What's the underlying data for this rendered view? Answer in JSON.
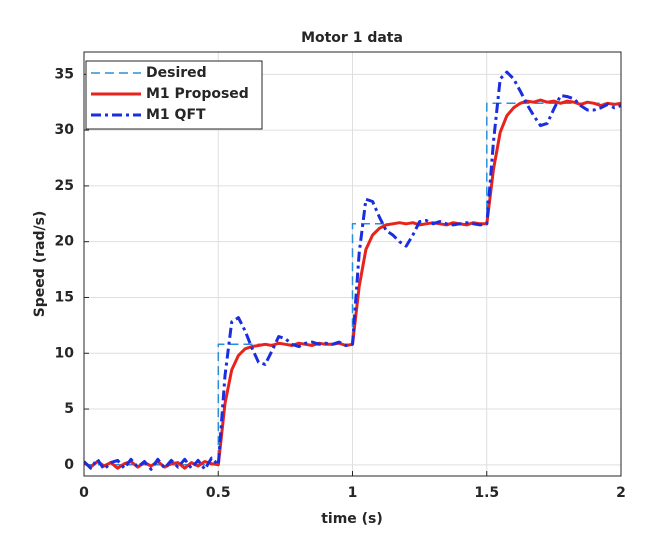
{
  "chart_data": {
    "type": "line",
    "title": "Motor 1 data",
    "xlabel": "time (s)",
    "ylabel": "Speed (rad/s)",
    "xlim": [
      0,
      2
    ],
    "ylim": [
      -1,
      37
    ],
    "xticks": [
      0,
      0.5,
      1,
      1.5,
      2
    ],
    "yticks": [
      0,
      5,
      10,
      15,
      20,
      25,
      30,
      35
    ],
    "grid": true,
    "legend": "northwest",
    "x": [
      0,
      0.025,
      0.05,
      0.075,
      0.1,
      0.125,
      0.15,
      0.175,
      0.2,
      0.225,
      0.25,
      0.275,
      0.3,
      0.325,
      0.35,
      0.375,
      0.4,
      0.425,
      0.45,
      0.475,
      0.5,
      0.525,
      0.55,
      0.575,
      0.6,
      0.625,
      0.65,
      0.675,
      0.7,
      0.725,
      0.75,
      0.775,
      0.8,
      0.825,
      0.85,
      0.875,
      0.9,
      0.925,
      0.95,
      0.975,
      1,
      1.025,
      1.05,
      1.075,
      1.1,
      1.125,
      1.15,
      1.175,
      1.2,
      1.225,
      1.25,
      1.275,
      1.3,
      1.325,
      1.35,
      1.375,
      1.4,
      1.425,
      1.45,
      1.475,
      1.5,
      1.525,
      1.55,
      1.575,
      1.6,
      1.625,
      1.65,
      1.675,
      1.7,
      1.725,
      1.75,
      1.775,
      1.8,
      1.825,
      1.85,
      1.875,
      1.9,
      1.925,
      1.95,
      1.975,
      2
    ],
    "series": [
      {
        "name": "Desired",
        "color": "#2a8fd8",
        "linestyle": "--",
        "width": 1.5,
        "x": [
          0,
          0.5,
          0.5,
          1,
          1,
          1.5,
          1.5,
          2
        ],
        "values": [
          0,
          0,
          10.8,
          10.8,
          21.6,
          21.6,
          32.4,
          32.4
        ]
      },
      {
        "name": "M1 Proposed",
        "color": "#e8231c",
        "linestyle": "-",
        "width": 3,
        "values": [
          0.2,
          -0.2,
          0.3,
          -0.1,
          0.2,
          -0.3,
          0.1,
          0.3,
          -0.2,
          0.2,
          -0.1,
          0.3,
          -0.2,
          0.1,
          0.2,
          -0.3,
          0.2,
          -0.1,
          0.3,
          0.1,
          0,
          5.5,
          8.5,
          9.8,
          10.4,
          10.6,
          10.7,
          10.8,
          10.7,
          10.9,
          10.8,
          10.7,
          10.9,
          10.8,
          10.7,
          10.9,
          10.8,
          10.8,
          10.9,
          10.7,
          10.8,
          16.0,
          19.3,
          20.6,
          21.2,
          21.5,
          21.6,
          21.7,
          21.6,
          21.7,
          21.5,
          21.6,
          21.7,
          21.6,
          21.5,
          21.7,
          21.6,
          21.5,
          21.7,
          21.6,
          21.6,
          26.5,
          29.8,
          31.3,
          32.0,
          32.4,
          32.6,
          32.5,
          32.7,
          32.5,
          32.6,
          32.4,
          32.6,
          32.5,
          32.3,
          32.5,
          32.4,
          32.2,
          32.4,
          32.3,
          32.4
        ]
      },
      {
        "name": "M1 QFT",
        "color": "#1a2ee0",
        "linestyle": "-.",
        "width": 3,
        "values": [
          0.3,
          -0.3,
          0.5,
          -0.4,
          0.2,
          0.4,
          -0.3,
          0.5,
          -0.2,
          0.3,
          -0.4,
          0.5,
          -0.3,
          0.4,
          -0.2,
          0.5,
          -0.3,
          0.4,
          -0.4,
          0.6,
          0,
          8,
          12.8,
          13.2,
          12,
          10.5,
          9.2,
          9.0,
          10.2,
          11.5,
          11.3,
          10.8,
          10.6,
          10.9,
          11.0,
          10.8,
          10.9,
          10.8,
          11.0,
          10.7,
          10.8,
          19,
          23.8,
          23.6,
          22.2,
          21.0,
          20.6,
          20.0,
          19.6,
          20.6,
          21.8,
          21.9,
          21.6,
          21.8,
          21.6,
          21.5,
          21.6,
          21.7,
          21.6,
          21.5,
          21.6,
          29,
          34.6,
          35.2,
          34.6,
          33.5,
          32.3,
          31.3,
          30.4,
          30.6,
          31.9,
          33.1,
          33.0,
          32.8,
          32.2,
          31.8,
          31.8,
          32.0,
          32.3,
          32.0,
          32.2
        ]
      }
    ]
  }
}
